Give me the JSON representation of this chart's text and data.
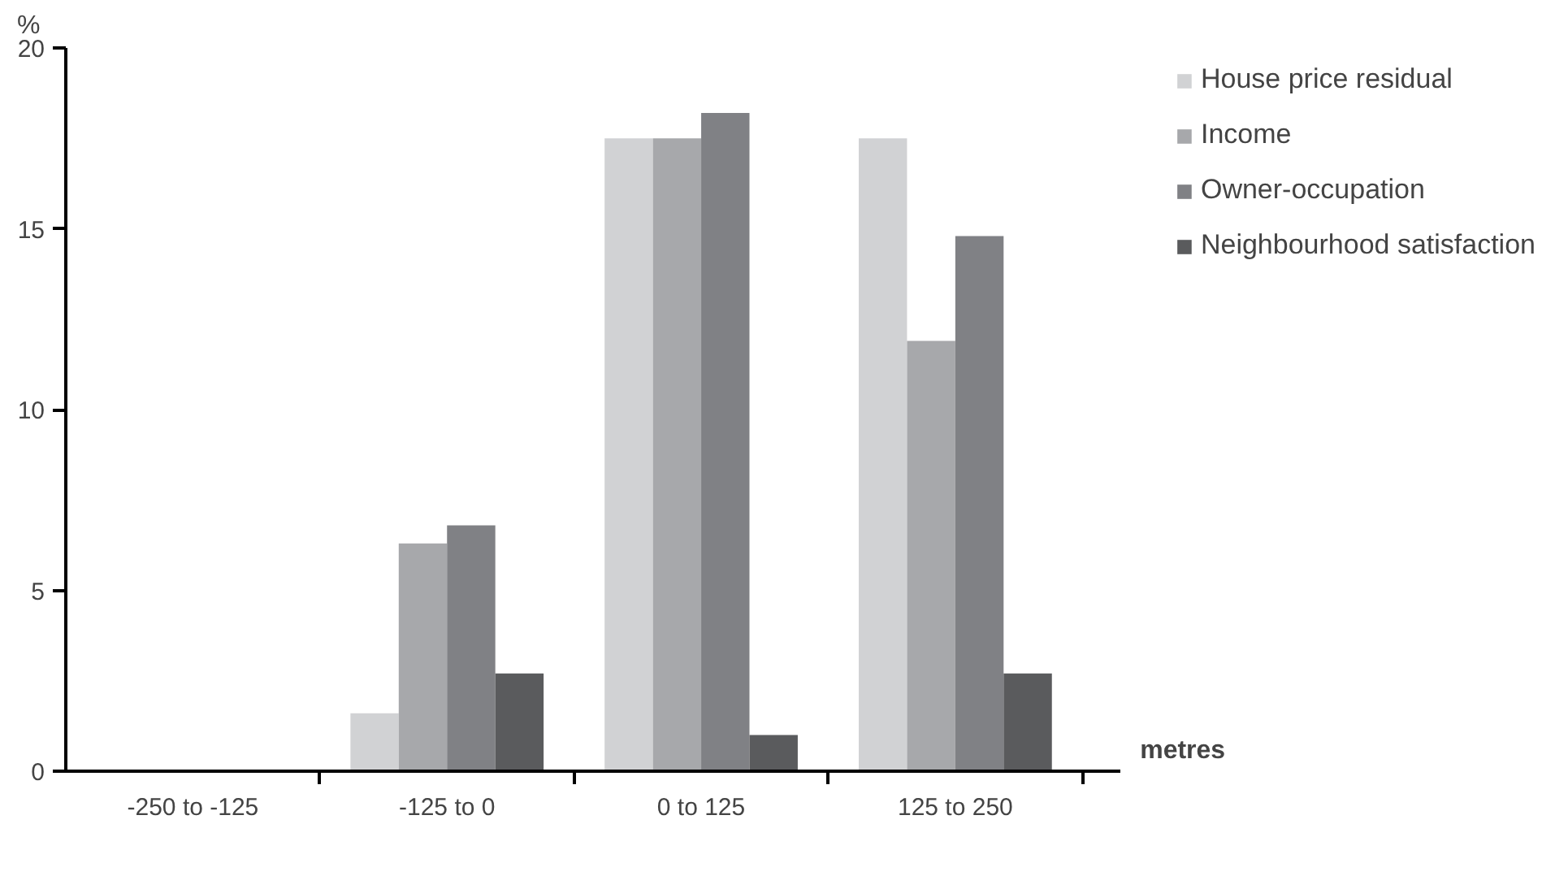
{
  "chart_data": {
    "type": "bar",
    "ylabel": "%",
    "xlabel": "metres",
    "categories": [
      "-250 to -125",
      "-125 to 0",
      "0 to 125",
      "125 to 250"
    ],
    "series": [
      {
        "name": "House price residual",
        "color": "#d1d2d4",
        "values": [
          0,
          1.6,
          17.5,
          17.5
        ]
      },
      {
        "name": "Income",
        "color": "#a7a8ab",
        "values": [
          0,
          6.3,
          17.5,
          11.9
        ]
      },
      {
        "name": "Owner-occupation",
        "color": "#808185",
        "values": [
          0,
          6.8,
          18.2,
          14.8
        ]
      },
      {
        "name": "Neighbourhood satisfaction",
        "color": "#5a5b5d",
        "values": [
          0,
          2.7,
          1.0,
          2.7
        ]
      }
    ],
    "ylim": [
      0,
      20
    ],
    "yticks": [
      0,
      5,
      10,
      15,
      20
    ],
    "grid": false,
    "legend": "top right"
  }
}
